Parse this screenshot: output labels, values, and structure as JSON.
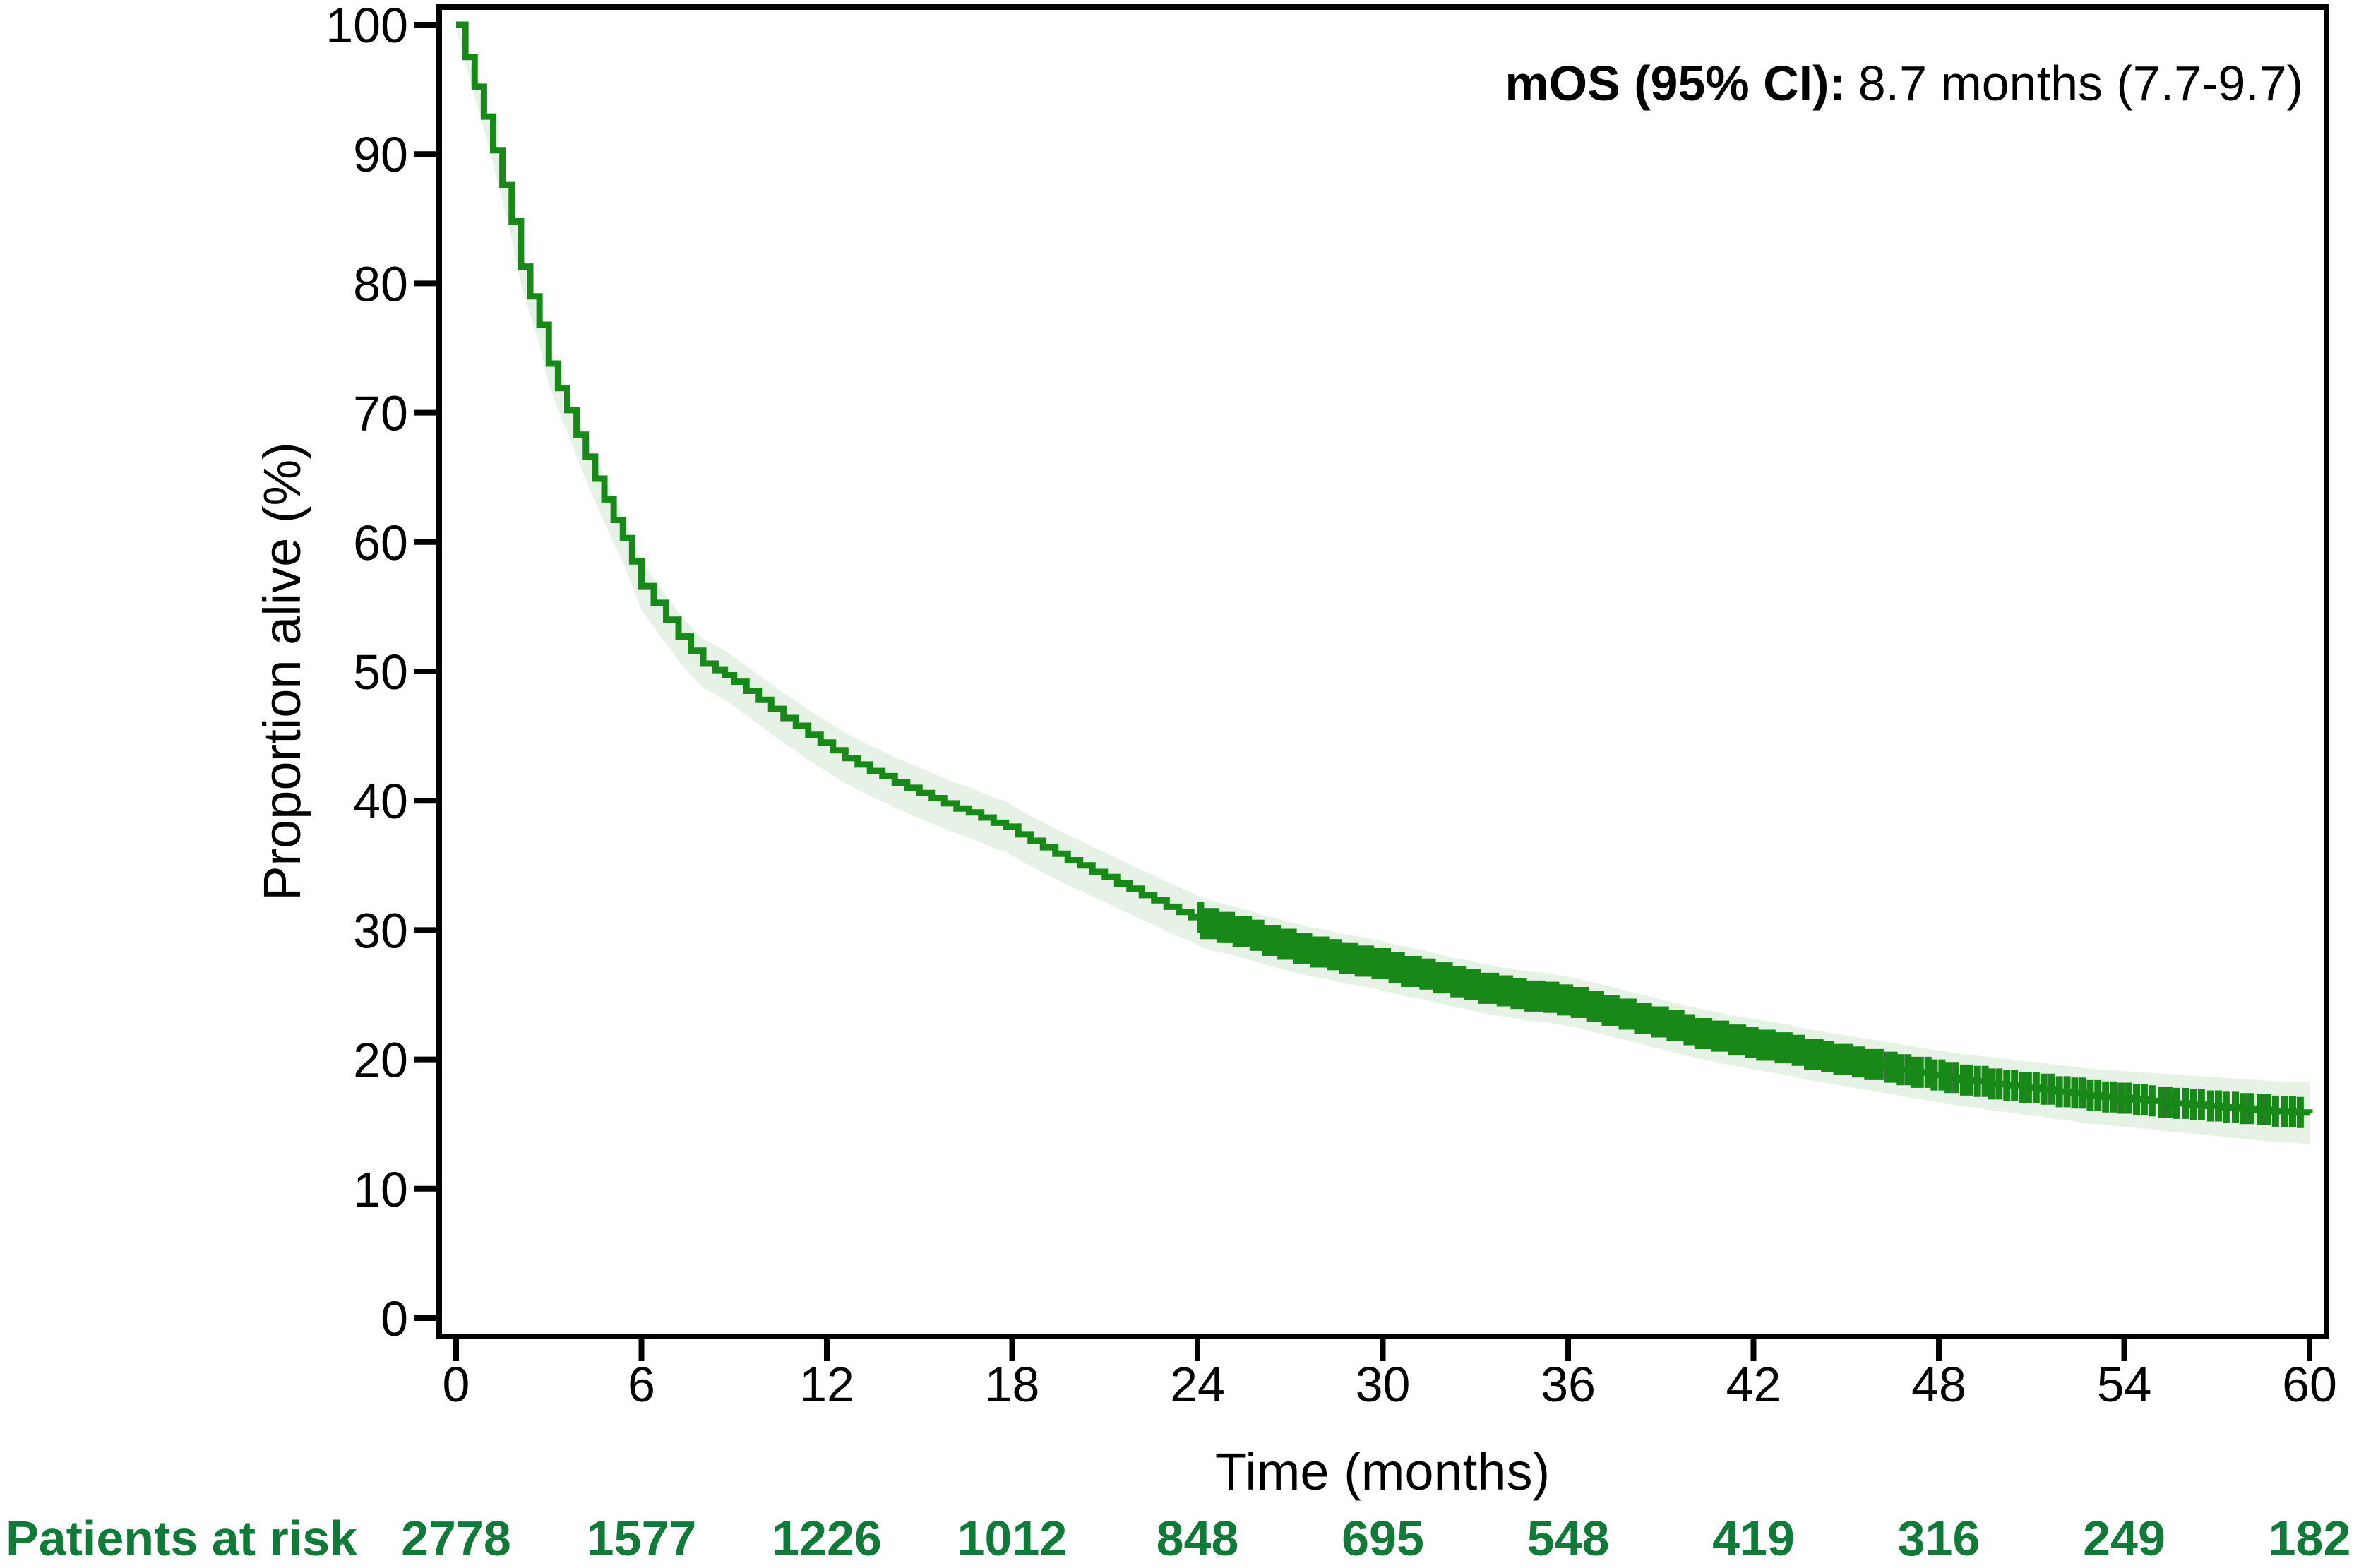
{
  "annotation": {
    "bold": "mOS (95% CI):",
    "rest": "8.7 months (7.7-9.7)"
  },
  "colors": {
    "curve": "#188818",
    "ci_band": "#e7f2e7",
    "at_risk_text": "#117a38",
    "axis": "#000000"
  },
  "chart_data": {
    "type": "line",
    "subtype": "kaplan-meier-step",
    "title": "",
    "xlabel": "Time (months)",
    "ylabel": "Proportion alive (%)",
    "xlim": [
      0,
      60
    ],
    "ylim": [
      0,
      100
    ],
    "x_ticks": [
      0,
      6,
      12,
      18,
      24,
      30,
      36,
      42,
      48,
      54,
      60
    ],
    "y_ticks": [
      0,
      10,
      20,
      30,
      40,
      50,
      60,
      70,
      80,
      90,
      100
    ],
    "grid": false,
    "legend_position": "none",
    "median_os_months": 8.7,
    "median_os_ci": [
      7.7,
      9.7
    ],
    "series": [
      {
        "name": "Overall survival",
        "points": [
          [
            0,
            100
          ],
          [
            0.3,
            97.5
          ],
          [
            0.6,
            95.2
          ],
          [
            0.9,
            92.9
          ],
          [
            1.2,
            90.3
          ],
          [
            1.5,
            87.6
          ],
          [
            1.8,
            84.8
          ],
          [
            2.1,
            81.3
          ],
          [
            2.4,
            79
          ],
          [
            2.7,
            76.8
          ],
          [
            3,
            73.8
          ],
          [
            3.3,
            71.9
          ],
          [
            3.6,
            70.2
          ],
          [
            3.9,
            68.3
          ],
          [
            4.2,
            66.6
          ],
          [
            4.5,
            64.9
          ],
          [
            4.8,
            63.3
          ],
          [
            5.1,
            61.7
          ],
          [
            5.4,
            60.3
          ],
          [
            5.7,
            58.5
          ],
          [
            6,
            56.6
          ],
          [
            6.4,
            55.3
          ],
          [
            6.8,
            54
          ],
          [
            7.2,
            52.7
          ],
          [
            7.6,
            51.6
          ],
          [
            8,
            50.6
          ],
          [
            8.4,
            50.1
          ],
          [
            8.7,
            49.7
          ],
          [
            9,
            49.2
          ],
          [
            9.4,
            48.5
          ],
          [
            9.8,
            47.8
          ],
          [
            10.2,
            47.1
          ],
          [
            10.6,
            46.4
          ],
          [
            11,
            45.8
          ],
          [
            11.4,
            45.1
          ],
          [
            11.8,
            44.5
          ],
          [
            12.2,
            43.9
          ],
          [
            12.6,
            43.3
          ],
          [
            13,
            42.8
          ],
          [
            13.4,
            42.3
          ],
          [
            13.8,
            41.9
          ],
          [
            14.2,
            41.4
          ],
          [
            14.6,
            41
          ],
          [
            15,
            40.6
          ],
          [
            15.4,
            40.2
          ],
          [
            15.8,
            39.8
          ],
          [
            16.2,
            39.4
          ],
          [
            16.6,
            39.1
          ],
          [
            17,
            38.7
          ],
          [
            17.4,
            38.3
          ],
          [
            17.8,
            38
          ],
          [
            18.2,
            37.4
          ],
          [
            18.6,
            36.9
          ],
          [
            19,
            36.4
          ],
          [
            19.4,
            35.9
          ],
          [
            19.8,
            35.4
          ],
          [
            20.2,
            35
          ],
          [
            20.6,
            34.5
          ],
          [
            21,
            34.1
          ],
          [
            21.4,
            33.6
          ],
          [
            21.8,
            33.2
          ],
          [
            22.2,
            32.7
          ],
          [
            22.6,
            32.3
          ],
          [
            23,
            31.8
          ],
          [
            23.4,
            31.4
          ],
          [
            23.8,
            31
          ],
          [
            24.2,
            30.5
          ],
          [
            24.7,
            30.2
          ],
          [
            25.2,
            29.9
          ],
          [
            25.7,
            29.6
          ],
          [
            26.2,
            29.2
          ],
          [
            26.7,
            28.9
          ],
          [
            27.2,
            28.6
          ],
          [
            27.7,
            28.3
          ],
          [
            28.2,
            28.1
          ],
          [
            28.7,
            27.8
          ],
          [
            29.2,
            27.6
          ],
          [
            29.7,
            27.4
          ],
          [
            30.2,
            27.1
          ],
          [
            30.7,
            26.8
          ],
          [
            31.2,
            26.6
          ],
          [
            31.7,
            26.3
          ],
          [
            32.2,
            26
          ],
          [
            32.7,
            25.8
          ],
          [
            33.2,
            25.5
          ],
          [
            33.7,
            25.3
          ],
          [
            34.2,
            25.1
          ],
          [
            34.7,
            24.9
          ],
          [
            35.2,
            24.8
          ],
          [
            35.7,
            24.6
          ],
          [
            36.2,
            24.4
          ],
          [
            36.7,
            24.1
          ],
          [
            37.2,
            23.8
          ],
          [
            37.7,
            23.5
          ],
          [
            38.2,
            23.2
          ],
          [
            38.7,
            22.9
          ],
          [
            39.2,
            22.6
          ],
          [
            39.7,
            22.3
          ],
          [
            40.2,
            22
          ],
          [
            40.7,
            21.8
          ],
          [
            41.2,
            21.5
          ],
          [
            41.7,
            21.3
          ],
          [
            42.2,
            21.1
          ],
          [
            42.7,
            20.9
          ],
          [
            43.2,
            20.7
          ],
          [
            43.7,
            20.4
          ],
          [
            44.2,
            20.2
          ],
          [
            44.7,
            20
          ],
          [
            45.2,
            19.8
          ],
          [
            45.7,
            19.6
          ],
          [
            46.2,
            19.4
          ],
          [
            46.7,
            19.2
          ],
          [
            47.2,
            19
          ],
          [
            47.7,
            18.8
          ],
          [
            48.2,
            18.6
          ],
          [
            48.7,
            18.4
          ],
          [
            49.2,
            18.3
          ],
          [
            49.7,
            18.1
          ],
          [
            50.2,
            18
          ],
          [
            50.7,
            17.8
          ],
          [
            51.2,
            17.7
          ],
          [
            51.7,
            17.5
          ],
          [
            52.2,
            17.4
          ],
          [
            52.7,
            17.2
          ],
          [
            53.2,
            17.1
          ],
          [
            53.7,
            17
          ],
          [
            54.2,
            16.9
          ],
          [
            54.7,
            16.8
          ],
          [
            55.2,
            16.7
          ],
          [
            55.7,
            16.6
          ],
          [
            56.2,
            16.5
          ],
          [
            56.7,
            16.4
          ],
          [
            57.2,
            16.3
          ],
          [
            57.7,
            16.2
          ],
          [
            58.2,
            16.1
          ],
          [
            58.7,
            16
          ],
          [
            59.2,
            15.95
          ],
          [
            59.6,
            15.9
          ],
          [
            60,
            15.85
          ]
        ],
        "ci_halfwidth": [
          [
            0,
            0.25
          ],
          [
            0.5,
            0.7
          ],
          [
            1,
            1.0
          ],
          [
            2,
            1.4
          ],
          [
            3,
            1.6
          ],
          [
            4,
            1.75
          ],
          [
            6,
            1.85
          ],
          [
            9,
            1.9
          ],
          [
            12,
            1.95
          ],
          [
            18,
            1.95
          ],
          [
            24,
            1.9
          ],
          [
            30,
            1.9
          ],
          [
            36,
            1.9
          ],
          [
            42,
            1.95
          ],
          [
            48,
            2.0
          ],
          [
            54,
            2.15
          ],
          [
            60,
            2.4
          ]
        ],
        "censor_times": [
          24.1,
          24.2,
          24.35,
          24.5,
          24.6,
          24.75,
          24.9,
          25.0,
          25.1,
          25.25,
          25.4,
          25.5,
          25.65,
          25.8,
          25.9,
          26.05,
          26.2,
          26.3,
          26.45,
          26.6,
          26.7,
          26.85,
          27.0,
          27.1,
          27.2,
          27.35,
          27.5,
          27.6,
          27.75,
          27.9,
          28.0,
          28.15,
          28.3,
          28.4,
          28.55,
          28.7,
          28.8,
          28.95,
          29.1,
          29.2,
          29.35,
          29.5,
          29.6,
          29.75,
          29.9,
          30.0,
          30.15,
          30.3,
          30.45,
          30.6,
          30.7,
          30.85,
          31.0,
          31.15,
          31.3,
          31.45,
          31.6,
          31.75,
          31.9,
          32.0,
          32.15,
          32.3,
          32.45,
          32.6,
          32.75,
          32.9,
          33.05,
          33.2,
          33.35,
          33.5,
          33.65,
          33.8,
          33.95,
          34.1,
          34.25,
          34.4,
          34.55,
          34.7,
          34.85,
          35.0,
          35.15,
          35.3,
          35.45,
          35.6,
          35.75,
          35.9,
          36.05,
          36.2,
          36.4,
          36.55,
          36.7,
          36.9,
          37.05,
          37.2,
          37.4,
          37.55,
          37.75,
          37.9,
          38.1,
          38.25,
          38.45,
          38.6,
          38.8,
          38.95,
          39.15,
          39.3,
          39.5,
          39.65,
          39.85,
          40.0,
          40.2,
          40.4,
          40.55,
          40.75,
          40.95,
          41.1,
          41.3,
          41.5,
          41.65,
          41.85,
          42.05,
          42.2,
          42.4,
          42.6,
          42.8,
          43.0,
          43.15,
          43.35,
          43.55,
          43.75,
          43.95,
          44.15,
          44.3,
          44.5,
          44.7,
          44.9,
          45.1,
          45.3,
          45.5,
          45.7,
          45.9,
          46.1,
          46.35,
          46.55,
          46.75,
          47.0,
          47.2,
          47.4,
          47.65,
          47.85,
          48.1,
          48.3,
          48.55,
          48.8,
          49.0,
          49.25,
          49.5,
          49.7,
          49.95,
          50.2,
          50.45,
          50.7,
          50.9,
          51.15,
          51.4,
          51.65,
          51.9,
          52.15,
          52.4,
          52.65,
          52.9,
          53.15,
          53.4,
          53.65,
          53.9,
          54.15,
          54.4,
          54.65,
          54.9,
          55.2,
          55.45,
          55.7,
          56.0,
          56.25,
          56.5,
          56.8,
          57.05,
          57.3,
          57.6,
          57.85,
          58.1,
          58.4,
          58.65,
          58.9,
          59.2,
          59.45,
          59.7
        ]
      }
    ],
    "at_risk": {
      "label": "Patients at risk",
      "times": [
        0,
        6,
        12,
        18,
        24,
        30,
        36,
        42,
        48,
        54,
        60
      ],
      "values": [
        2778,
        1577,
        1226,
        1012,
        848,
        695,
        548,
        419,
        316,
        249,
        182
      ]
    }
  }
}
